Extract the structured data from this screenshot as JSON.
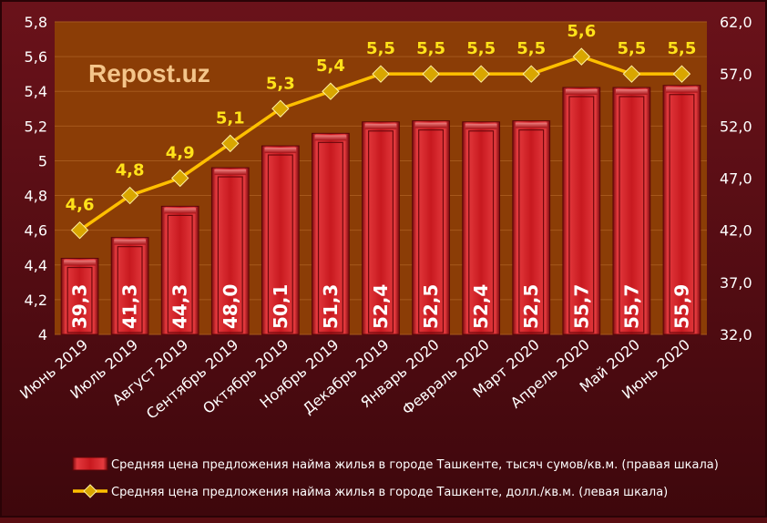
{
  "watermark": "Repost.uz",
  "chart_data": {
    "type": "bar",
    "categories": [
      "Июнь 2019",
      "Июль 2019",
      "Август 2019",
      "Сентябрь 2019",
      "Октябрь 2019",
      "Ноябрь 2019",
      "Декабрь 2019",
      "Январь 2020",
      "Февраль 2020",
      "Март 2020",
      "Апрель 2020",
      "Май 2020",
      "Июнь 2020"
    ],
    "series": [
      {
        "name": "Средняя цена предложения найма жилья в городе Ташкенте, тысяч сумов/кв.м. (правая шкала)",
        "type": "bar",
        "axis": "right",
        "values": [
          39.3,
          41.3,
          44.3,
          48.0,
          50.1,
          51.3,
          52.4,
          52.5,
          52.4,
          52.5,
          55.7,
          55.7,
          55.9
        ],
        "labels": [
          "39,3",
          "41,3",
          "44,3",
          "48,0",
          "50,1",
          "51,3",
          "52,4",
          "52,5",
          "52,4",
          "52,5",
          "55,7",
          "55,7",
          "55,9"
        ],
        "color": "#c8191f"
      },
      {
        "name": "Средняя цена предложения найма жилья в городе Ташкенте, долл./кв.м. (левая шкала)",
        "type": "line",
        "axis": "left",
        "values": [
          4.6,
          4.8,
          4.9,
          5.1,
          5.3,
          5.4,
          5.5,
          5.5,
          5.5,
          5.5,
          5.6,
          5.5,
          5.5
        ],
        "labels": [
          "4,6",
          "4,8",
          "4,9",
          "5,1",
          "5,3",
          "5,4",
          "5,5",
          "5,5",
          "5,5",
          "5,5",
          "5,6",
          "5,5",
          "5,5"
        ],
        "color": "#ffc000"
      }
    ],
    "y_left": {
      "min": 4,
      "max": 5.8,
      "step": 0.2,
      "ticks": [
        "4",
        "4,2",
        "4,4",
        "4,6",
        "4,8",
        "5",
        "5,2",
        "5,4",
        "5,6",
        "5,8"
      ]
    },
    "y_right": {
      "min": 32,
      "max": 62,
      "step": 5,
      "ticks": [
        "32,0",
        "37,0",
        "42,0",
        "47,0",
        "52,0",
        "57,0",
        "62,0"
      ]
    },
    "plot_background": "#8b3d06",
    "grid": true,
    "legend_position": "bottom"
  }
}
